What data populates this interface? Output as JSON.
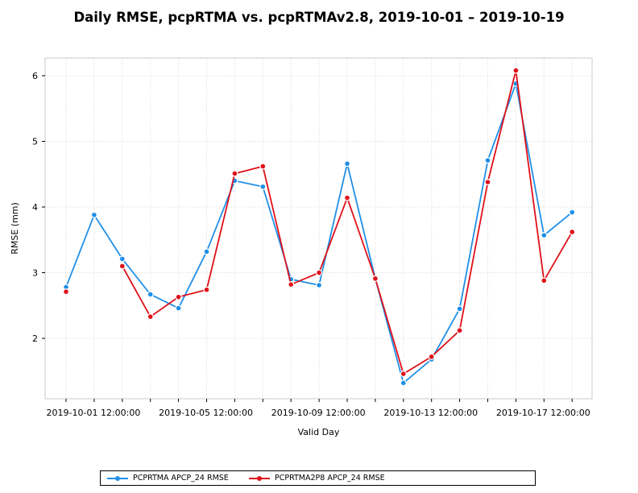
{
  "chart_data": {
    "type": "line",
    "title": "Daily RMSE, pcpRTMA vs. pcpRTMAv2.8, 2019-10-01 – 2019-10-19",
    "xlabel": "Valid Day",
    "ylabel": "RMSE (mm)",
    "x_tick_labels": [
      "2019-10-01 12:00:00",
      "2019-10-05 12:00:00",
      "2019-10-09 12:00:00",
      "2019-10-13 12:00:00",
      "2019-10-17 12:00:00"
    ],
    "x": [
      "2019-10-01",
      "2019-10-02",
      "2019-10-03",
      "2019-10-04",
      "2019-10-05",
      "2019-10-06",
      "2019-10-07",
      "2019-10-08",
      "2019-10-09",
      "2019-10-10",
      "2019-10-11",
      "2019-10-12",
      "2019-10-13",
      "2019-10-14",
      "2019-10-15",
      "2019-10-16",
      "2019-10-17",
      "2019-10-18",
      "2019-10-19"
    ],
    "y_ticks": [
      2,
      3,
      4,
      5,
      6
    ],
    "ylim": [
      1.08,
      6.27
    ],
    "grid": true,
    "legend_position": "bottom",
    "series": [
      {
        "name": "PCPRTMA APCP_24 RMSE",
        "color": "#1f8fe8",
        "values": [
          2.78,
          3.88,
          3.21,
          2.67,
          2.46,
          3.32,
          4.4,
          4.31,
          2.9,
          2.81,
          4.66,
          2.91,
          1.32,
          1.68,
          2.45,
          4.71,
          5.88,
          3.57,
          3.92
        ]
      },
      {
        "name": "PCPRTMA2P8 APCP_24 RMSE",
        "color": "#e0101a",
        "values": [
          2.71,
          null,
          3.1,
          2.33,
          2.63,
          2.74,
          4.51,
          4.62,
          2.82,
          3.0,
          4.14,
          2.91,
          1.46,
          1.72,
          2.12,
          4.38,
          6.08,
          2.88,
          3.62
        ]
      }
    ]
  }
}
